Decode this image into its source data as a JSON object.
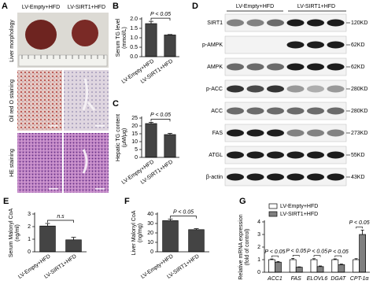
{
  "panel_a": {
    "panel": "A",
    "columns": [
      "LV-Empty+HFD",
      "LV-SIRT1+HFD"
    ],
    "rows": [
      "Liver morphology",
      "Oil red O staining",
      "HE staining"
    ]
  },
  "panel_d": {
    "panel": "D",
    "groups": [
      "LV-Empty+HFD",
      "LV-SIRT1+HFD"
    ],
    "bands": [
      {
        "protein": "SIRT1",
        "size": "120KD"
      },
      {
        "protein": "p-AMPK",
        "size": "62KD"
      },
      {
        "protein": "AMPK",
        "size": "62KD"
      },
      {
        "protein": "p-ACC",
        "size": "280KD"
      },
      {
        "protein": "ACC",
        "size": "280KD"
      },
      {
        "protein": "FAS",
        "size": "273KD"
      },
      {
        "protein": "ATGL",
        "size": "55KD"
      },
      {
        "protein": "β-actin",
        "size": "43KD"
      }
    ]
  },
  "chart_data": [
    {
      "type": "bar",
      "panel": "B",
      "ylabel": [
        "Serum TG level",
        "(mmol/L)"
      ],
      "categories": [
        "LV-Empty+HFD",
        "LV-SIRT1+HFD"
      ],
      "values": [
        1.75,
        1.15
      ],
      "errors": [
        0.12,
        0.02
      ],
      "color": "#444444",
      "annotation": "P < 0.05",
      "ylim": [
        0,
        2
      ],
      "yticks": [
        {
          "value": 0,
          "label": "0.0"
        },
        0.5,
        {
          "value": 1,
          "label": "1.0"
        },
        1.5,
        {
          "value": 2,
          "label": "2.0"
        }
      ]
    },
    {
      "type": "bar",
      "panel": "C",
      "ylabel": [
        "Hepatic TG content",
        "(μM/μg)"
      ],
      "categories": [
        "LV-Empty+HFD",
        "LV-SIRT1+HFD"
      ],
      "values": [
        21.5,
        14.5
      ],
      "errors": [
        0.8,
        0.8
      ],
      "color": "#444444",
      "annotation": "P < 0.05",
      "ylim": [
        0,
        25
      ],
      "yticks": [
        0,
        5,
        10,
        15,
        20,
        25
      ]
    },
    {
      "type": "bar",
      "panel": "E",
      "ylabel": [
        "Serum Malonyl CoA",
        "(ng/ml)"
      ],
      "categories": [
        "LV-Empty+HFD",
        "LV-SIRT1+HFD"
      ],
      "values": [
        2.05,
        0.95
      ],
      "errors": [
        0.2,
        0.2
      ],
      "color": "#444444",
      "annotation": "n.s",
      "ylim": [
        0,
        3
      ],
      "yticks": [
        0,
        1,
        2,
        3
      ]
    },
    {
      "type": "bar",
      "panel": "F",
      "ylabel": [
        "Liver Malonyl CoA",
        "(ng/mg)"
      ],
      "categories": [
        "LV-Empty+HFD",
        "LV-SIRT1+HFD"
      ],
      "values": [
        33,
        23.5
      ],
      "errors": [
        1.5,
        1.0
      ],
      "color": "#444444",
      "annotation": "P < 0.05",
      "ylim": [
        0,
        40
      ],
      "yticks": [
        0,
        10,
        20,
        30,
        40
      ]
    },
    {
      "type": "grouped-bar",
      "panel": "G",
      "ylabel": [
        "Relative mRNA expression",
        "(fold of control)"
      ],
      "categories": [
        "ACC1",
        "FAS",
        "ELOVL6",
        "DGAT",
        "CPT-1α"
      ],
      "series": [
        {
          "name": "LV-Empty+HFD",
          "color": "#ffffff",
          "values": [
            1,
            1,
            1,
            1,
            1
          ],
          "errors": [
            0.05,
            0.1,
            0.08,
            0.06,
            0.08
          ]
        },
        {
          "name": "LV-SIRT1+HFD",
          "color": "#808080",
          "values": [
            0.8,
            0.4,
            0.45,
            0.6,
            3.0
          ],
          "errors": [
            0.05,
            0.03,
            0.05,
            0.05,
            0.35
          ]
        }
      ],
      "annotations": [
        "P < 0.05",
        "P < 0.05",
        "P < 0.05",
        "P < 0.05",
        "P < 0.05"
      ],
      "ylim": [
        0,
        4
      ],
      "yticks": [
        0,
        1,
        2,
        3,
        4
      ]
    }
  ]
}
